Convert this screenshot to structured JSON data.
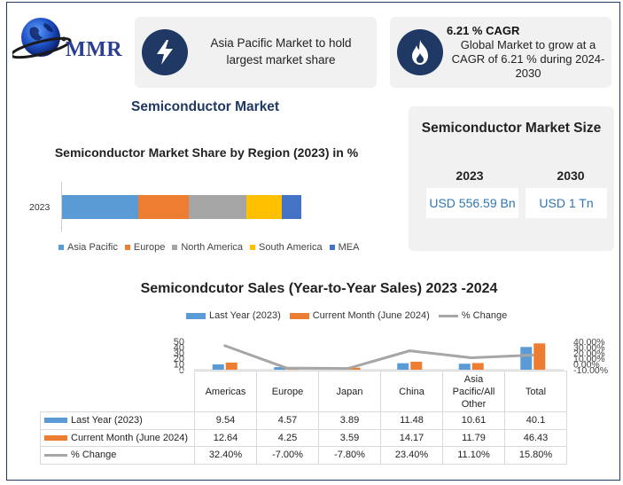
{
  "logo": {
    "text": "MMR"
  },
  "cards": {
    "asia": {
      "icon": "lightning-icon",
      "text": "Asia Pacific Market to hold largest market share"
    },
    "cagr": {
      "icon": "flame-icon",
      "title": "6.21 % CAGR",
      "text": "Global Market to grow at a CAGR of 6.21 % during 2024-2030"
    }
  },
  "main_title": "Semiconductor Market",
  "market_size": {
    "title": "Semiconductor Market Size",
    "years": [
      "2023",
      "2030"
    ],
    "values": [
      "USD 556.59 Bn",
      "USD 1 Tn"
    ]
  },
  "colors": {
    "navy": "#1f3864",
    "asia_pacific": "#5b9bd5",
    "europe": "#ed7d31",
    "north_america": "#a5a5a5",
    "south_america": "#ffc000",
    "mea": "#4472c4",
    "last_year": "#5b9bd5",
    "current_month": "#ed7d31",
    "pct_change": "#a6a6a6"
  },
  "chart_data": [
    {
      "type": "bar",
      "orientation": "horizontal",
      "stacked": true,
      "title": "Semiconductor Market Share by Region (2023) in %",
      "categories": [
        "2023"
      ],
      "series": [
        {
          "name": "Asia Pacific",
          "values": [
            32
          ]
        },
        {
          "name": "Europe",
          "values": [
            21
          ]
        },
        {
          "name": "North America",
          "values": [
            24
          ]
        },
        {
          "name": "South America",
          "values": [
            15
          ]
        },
        {
          "name": "MEA",
          "values": [
            8
          ]
        }
      ],
      "legend": "bottom"
    },
    {
      "type": "bar",
      "title": "Semicondcutor Sales (Year-to-Year Sales) 2023 -2024",
      "categories": [
        "Americas",
        "Europe",
        "Japan",
        "China",
        "Asia Pacific/All Other",
        "Total"
      ],
      "series": [
        {
          "name": "Last Year (2023)",
          "type": "bar",
          "values": [
            9.54,
            4.57,
            3.89,
            11.48,
            10.61,
            40.1
          ],
          "labels": [
            "9.54",
            "4.57",
            "3.89",
            "11.48",
            "10.61",
            "40.1"
          ]
        },
        {
          "name": "Current Month (June 2024)",
          "type": "bar",
          "values": [
            12.64,
            4.25,
            3.59,
            14.17,
            11.79,
            46.43
          ],
          "labels": [
            "12.64",
            "4.25",
            "3.59",
            "14.17",
            "11.79",
            "46.43"
          ]
        },
        {
          "name": "% Change",
          "type": "line",
          "axis": "secondary",
          "values": [
            32.4,
            -7.0,
            -7.8,
            23.4,
            11.1,
            15.8
          ],
          "labels": [
            "32.40%",
            "-7.00%",
            "-7.80%",
            "23.40%",
            "11.10%",
            "15.80%"
          ]
        }
      ],
      "y_ticks": [
        "50",
        "40",
        "30",
        "20",
        "10",
        "0"
      ],
      "ylim": [
        0,
        50
      ],
      "y2_ticks": [
        "40.00%",
        "30.00%",
        "20.00%",
        "10.00%",
        "0.00%",
        "-10.00%"
      ],
      "y2lim": [
        -10,
        40
      ],
      "legend": "top",
      "data_table": true
    }
  ]
}
